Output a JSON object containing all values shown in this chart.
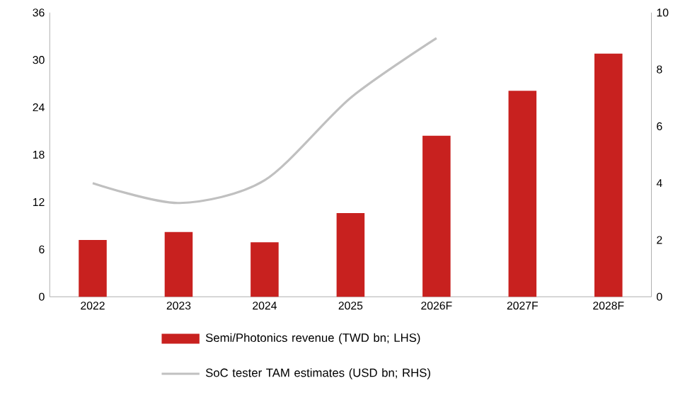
{
  "chart_data": {
    "type": "bar",
    "categories": [
      "2022",
      "2023",
      "2024",
      "2025",
      "2026F",
      "2027F",
      "2028F"
    ],
    "series": [
      {
        "name": "Semi/Photonics revenue (TWD bn; LHS)",
        "color": "#c8211f",
        "values": [
          7.2,
          8.2,
          6.9,
          10.6,
          20.4,
          26.1,
          30.8
        ]
      },
      {
        "name": "SoC tester TAM estimates (USD bn; RHS)",
        "color": "#c0c0c0",
        "type": "line",
        "axis": "y2",
        "values": [
          4.0,
          3.3,
          4.1,
          7.0,
          9.1,
          null,
          null
        ]
      }
    ],
    "ylim": [
      0,
      36
    ],
    "yticks": [
      0,
      6,
      12,
      18,
      24,
      30,
      36
    ],
    "y2lim": [
      0,
      10
    ],
    "y2ticks": [
      0,
      2,
      4,
      6,
      8,
      10
    ],
    "legend": "bottom",
    "grid": false
  }
}
